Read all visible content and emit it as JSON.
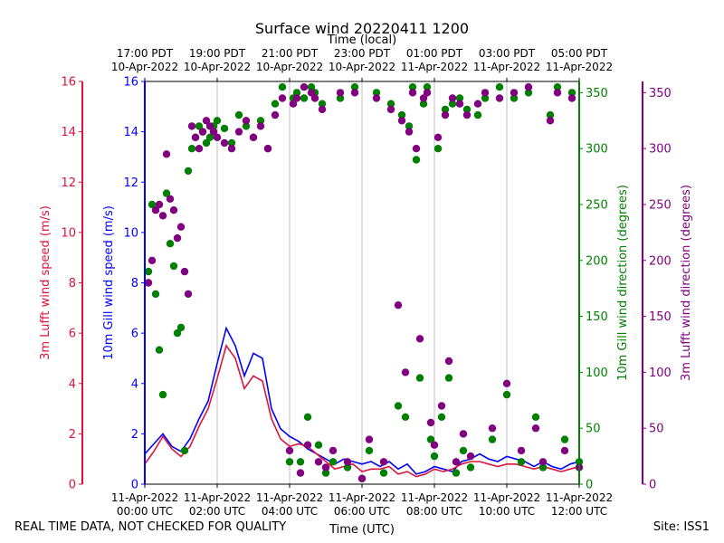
{
  "chart_data": {
    "type": "line",
    "title": "Surface wind 20220411 1200",
    "xlabel": "Time (UTC)",
    "x2label": "Time (local)",
    "xlim_hours_utc": [
      0,
      12
    ],
    "x_ticks_utc": [
      {
        "line1": "11-Apr-2022",
        "line2": "00:00 UTC"
      },
      {
        "line1": "11-Apr-2022",
        "line2": "02:00 UTC"
      },
      {
        "line1": "11-Apr-2022",
        "line2": "04:00 UTC"
      },
      {
        "line1": "11-Apr-2022",
        "line2": "06:00 UTC"
      },
      {
        "line1": "11-Apr-2022",
        "line2": "08:00 UTC"
      },
      {
        "line1": "11-Apr-2022",
        "line2": "10:00 UTC"
      },
      {
        "line1": "11-Apr-2022",
        "line2": "12:00 UTC"
      }
    ],
    "x_ticks_local": [
      {
        "line1": "17:00 PDT",
        "line2": "10-Apr-2022"
      },
      {
        "line1": "19:00 PDT",
        "line2": "10-Apr-2022"
      },
      {
        "line1": "21:00 PDT",
        "line2": "10-Apr-2022"
      },
      {
        "line1": "23:00 PDT",
        "line2": "10-Apr-2022"
      },
      {
        "line1": "01:00 PDT",
        "line2": "11-Apr-2022"
      },
      {
        "line1": "03:00 PDT",
        "line2": "11-Apr-2022"
      },
      {
        "line1": "05:00 PDT",
        "line2": "11-Apr-2022"
      }
    ],
    "axes": {
      "luft_speed": {
        "label": "3m Lufft wind speed (m/s)",
        "color": "#dc143c",
        "ylim": [
          0,
          16
        ],
        "ticks": [
          0,
          2,
          4,
          6,
          8,
          10,
          12,
          14,
          16
        ]
      },
      "gill_speed": {
        "label": "10m Gill wind speed (m/s)",
        "color": "#0000ff",
        "ylim": [
          0,
          16
        ],
        "ticks": [
          0,
          2,
          4,
          6,
          8,
          10,
          12,
          14,
          16
        ]
      },
      "gill_dir": {
        "label": "10m Gill wind direction (degrees)",
        "color": "#008000",
        "ylim": [
          0,
          360
        ],
        "ticks": [
          0,
          50,
          100,
          150,
          200,
          250,
          300,
          350
        ]
      },
      "luft_dir": {
        "label": "3m Lufft wind direction (degrees)",
        "color": "#800080",
        "ylim": [
          0,
          360
        ],
        "ticks": [
          0,
          50,
          100,
          150,
          200,
          250,
          300,
          350
        ]
      }
    },
    "grid": "vertical",
    "series": [
      {
        "key": "gill_speed",
        "kind": "line",
        "color": "#0000ff",
        "x": [
          0,
          0.25,
          0.5,
          0.75,
          1,
          1.25,
          1.5,
          1.75,
          2,
          2.25,
          2.5,
          2.75,
          3,
          3.25,
          3.5,
          3.75,
          4,
          4.25,
          4.5,
          4.75,
          5,
          5.25,
          5.5,
          5.75,
          6,
          6.25,
          6.5,
          6.75,
          7,
          7.25,
          7.5,
          7.75,
          8,
          8.25,
          8.5,
          8.75,
          9,
          9.25,
          9.5,
          9.75,
          10,
          10.25,
          10.5,
          10.75,
          11,
          11.25,
          11.5,
          11.75,
          12
        ],
        "y": [
          1.2,
          1.6,
          2.0,
          1.5,
          1.3,
          1.8,
          2.6,
          3.3,
          4.8,
          6.2,
          5.5,
          4.3,
          5.2,
          5.0,
          3.0,
          2.2,
          1.9,
          1.7,
          1.4,
          1.2,
          1.0,
          0.8,
          1.0,
          0.9,
          0.8,
          0.9,
          0.7,
          0.9,
          0.6,
          0.8,
          0.4,
          0.5,
          0.7,
          0.6,
          0.5,
          0.9,
          1.0,
          1.2,
          1.0,
          0.9,
          1.1,
          1.0,
          0.9,
          0.7,
          0.9,
          0.7,
          0.6,
          0.8,
          0.9
        ]
      },
      {
        "key": "luft_speed",
        "kind": "line",
        "color": "#dc143c",
        "x": [
          0,
          0.25,
          0.5,
          0.75,
          1,
          1.25,
          1.5,
          1.75,
          2,
          2.25,
          2.5,
          2.75,
          3,
          3.25,
          3.5,
          3.75,
          4,
          4.25,
          4.5,
          4.75,
          5,
          5.25,
          5.5,
          5.75,
          6,
          6.25,
          6.5,
          6.75,
          7,
          7.25,
          7.5,
          7.75,
          8,
          8.25,
          8.5,
          8.75,
          9,
          9.25,
          9.5,
          9.75,
          10,
          10.25,
          10.5,
          10.75,
          11,
          11.25,
          11.5,
          11.75,
          12
        ],
        "y": [
          0.8,
          1.3,
          1.9,
          1.4,
          1.1,
          1.5,
          2.3,
          3.0,
          4.2,
          5.5,
          5.0,
          3.8,
          4.3,
          4.1,
          2.6,
          1.8,
          1.5,
          1.6,
          1.5,
          1.2,
          0.9,
          0.6,
          0.7,
          0.8,
          0.5,
          0.6,
          0.6,
          0.7,
          0.4,
          0.5,
          0.3,
          0.4,
          0.6,
          0.5,
          0.6,
          0.8,
          0.9,
          0.9,
          0.8,
          0.7,
          0.8,
          0.8,
          0.7,
          0.6,
          0.7,
          0.6,
          0.5,
          0.6,
          0.7
        ]
      },
      {
        "key": "gill_dir",
        "kind": "scatter",
        "color": "#008000",
        "x": [
          0.1,
          0.2,
          0.3,
          0.4,
          0.5,
          0.6,
          0.7,
          0.8,
          0.9,
          1.0,
          1.1,
          1.2,
          1.3,
          1.4,
          1.5,
          1.6,
          1.7,
          1.8,
          1.9,
          2.0,
          2.2,
          2.4,
          2.6,
          2.8,
          3.0,
          3.2,
          3.4,
          3.6,
          3.8,
          4.0,
          4.1,
          4.2,
          4.3,
          4.4,
          4.5,
          4.6,
          4.7,
          4.8,
          4.9,
          5.0,
          5.2,
          5.4,
          5.6,
          5.8,
          6.0,
          6.2,
          6.4,
          6.6,
          6.8,
          7.0,
          7.1,
          7.2,
          7.3,
          7.4,
          7.5,
          7.6,
          7.7,
          7.8,
          7.9,
          8.0,
          8.1,
          8.2,
          8.3,
          8.4,
          8.5,
          8.6,
          8.7,
          8.8,
          8.9,
          9.0,
          9.2,
          9.4,
          9.6,
          9.8,
          10.0,
          10.2,
          10.4,
          10.6,
          10.8,
          11.0,
          11.2,
          11.4,
          11.6,
          11.8,
          12.0
        ],
        "y": [
          190,
          250,
          170,
          120,
          80,
          260,
          215,
          195,
          135,
          140,
          30,
          280,
          300,
          310,
          320,
          315,
          305,
          310,
          320,
          325,
          318,
          305,
          330,
          320,
          310,
          325,
          300,
          340,
          355,
          20,
          345,
          350,
          20,
          345,
          60,
          355,
          350,
          35,
          340,
          10,
          20,
          345,
          15,
          355,
          5,
          30,
          350,
          10,
          340,
          70,
          330,
          60,
          320,
          355,
          290,
          95,
          340,
          355,
          40,
          25,
          300,
          60,
          335,
          95,
          340,
          10,
          345,
          30,
          335,
          15,
          330,
          345,
          40,
          355,
          80,
          345,
          20,
          350,
          60,
          15,
          330,
          355,
          40,
          350,
          20
        ]
      },
      {
        "key": "luft_dir",
        "kind": "scatter",
        "color": "#800080",
        "x": [
          0.1,
          0.2,
          0.3,
          0.4,
          0.5,
          0.6,
          0.7,
          0.8,
          0.9,
          1.0,
          1.1,
          1.2,
          1.3,
          1.4,
          1.5,
          1.6,
          1.7,
          1.8,
          1.9,
          2.0,
          2.2,
          2.4,
          2.6,
          2.8,
          3.0,
          3.2,
          3.4,
          3.6,
          3.8,
          4.0,
          4.1,
          4.2,
          4.3,
          4.4,
          4.5,
          4.6,
          4.7,
          4.8,
          4.9,
          5.0,
          5.2,
          5.4,
          5.6,
          5.8,
          6.0,
          6.2,
          6.4,
          6.6,
          6.8,
          7.0,
          7.1,
          7.2,
          7.3,
          7.4,
          7.5,
          7.6,
          7.7,
          7.8,
          7.9,
          8.0,
          8.1,
          8.2,
          8.3,
          8.4,
          8.5,
          8.6,
          8.7,
          8.8,
          8.9,
          9.0,
          9.2,
          9.4,
          9.6,
          9.8,
          10.0,
          10.2,
          10.4,
          10.6,
          10.8,
          11.0,
          11.2,
          11.4,
          11.6,
          11.8,
          12.0
        ],
        "y": [
          180,
          200,
          245,
          250,
          240,
          295,
          255,
          245,
          220,
          230,
          190,
          170,
          320,
          310,
          300,
          315,
          325,
          320,
          315,
          310,
          305,
          300,
          315,
          325,
          310,
          320,
          300,
          330,
          345,
          30,
          340,
          345,
          10,
          355,
          35,
          350,
          345,
          20,
          335,
          15,
          30,
          350,
          20,
          350,
          5,
          40,
          345,
          20,
          335,
          160,
          325,
          100,
          315,
          350,
          300,
          130,
          345,
          350,
          55,
          35,
          310,
          70,
          330,
          110,
          345,
          20,
          340,
          45,
          330,
          25,
          340,
          350,
          50,
          345,
          90,
          350,
          30,
          355,
          50,
          20,
          325,
          350,
          30,
          345,
          15
        ]
      }
    ]
  },
  "footer": {
    "left": "REAL TIME DATA, NOT CHECKED FOR QUALITY",
    "right": "Site: ISS1"
  }
}
